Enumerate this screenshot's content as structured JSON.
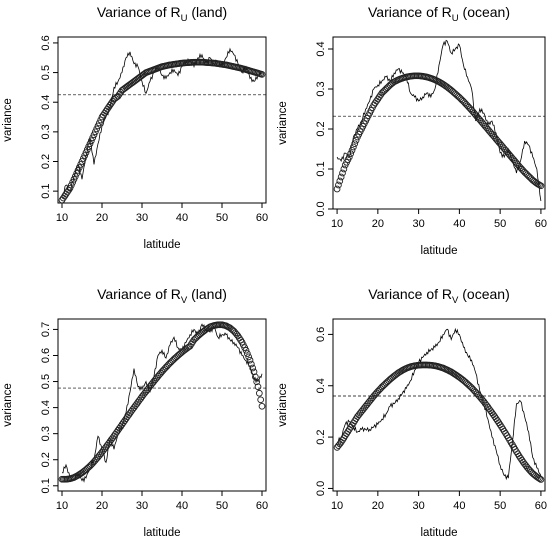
{
  "chart_data": [
    {
      "type": "line",
      "title": {
        "pre": "Variance of R",
        "sub": "U",
        "post": " (land)"
      },
      "xlabel": "latitude",
      "ylabel": "variance",
      "xlim": [
        9,
        61
      ],
      "ylim": [
        0.06,
        0.62
      ],
      "xticks": [
        "10",
        "20",
        "30",
        "40",
        "50",
        "60"
      ],
      "yticks": [
        "0.1",
        "0.2",
        "0.3",
        "0.4",
        "0.5",
        "0.6"
      ],
      "mean_line": 0.425,
      "series": [
        {
          "style": "observed",
          "x": [
            10,
            11,
            12,
            13,
            14,
            15,
            16,
            17,
            18,
            19,
            20,
            21,
            22,
            23,
            24,
            25,
            26,
            27,
            28,
            29,
            30,
            31,
            32,
            33,
            34,
            35,
            36,
            37,
            38,
            39,
            40,
            41,
            42,
            43,
            44,
            45,
            46,
            47,
            48,
            49,
            50,
            51,
            52,
            53,
            54,
            55,
            56,
            57,
            58,
            59,
            60
          ],
          "y": [
            0.08,
            0.12,
            0.1,
            0.15,
            0.19,
            0.14,
            0.22,
            0.28,
            0.19,
            0.26,
            0.32,
            0.35,
            0.38,
            0.45,
            0.47,
            0.5,
            0.55,
            0.57,
            0.53,
            0.52,
            0.47,
            0.43,
            0.47,
            0.5,
            0.52,
            0.49,
            0.48,
            0.5,
            0.51,
            0.49,
            0.52,
            0.54,
            0.54,
            0.52,
            0.55,
            0.56,
            0.53,
            0.55,
            0.53,
            0.54,
            0.52,
            0.55,
            0.58,
            0.56,
            0.53,
            0.5,
            0.52,
            0.48,
            0.47,
            0.49,
            0.5
          ]
        },
        {
          "style": "fitted",
          "x": [
            10,
            11,
            12,
            13,
            14,
            15,
            16,
            17,
            18,
            19,
            20,
            21,
            22,
            23,
            24,
            25,
            26,
            27,
            28,
            29,
            30,
            31,
            32,
            33,
            34,
            35,
            36,
            37,
            38,
            39,
            40,
            41,
            42,
            43,
            44,
            45,
            46,
            47,
            48,
            49,
            50,
            51,
            52,
            53,
            54,
            55,
            56,
            57,
            58,
            59,
            60
          ],
          "y": [
            0.07,
            0.09,
            0.11,
            0.14,
            0.17,
            0.2,
            0.23,
            0.26,
            0.29,
            0.32,
            0.35,
            0.37,
            0.39,
            0.41,
            0.42,
            0.44,
            0.45,
            0.46,
            0.47,
            0.48,
            0.49,
            0.5,
            0.505,
            0.51,
            0.515,
            0.52,
            0.523,
            0.526,
            0.528,
            0.53,
            0.532,
            0.533,
            0.534,
            0.535,
            0.535,
            0.535,
            0.534,
            0.533,
            0.532,
            0.53,
            0.528,
            0.526,
            0.523,
            0.52,
            0.517,
            0.514,
            0.51,
            0.506,
            0.502,
            0.498,
            0.494
          ]
        }
      ]
    },
    {
      "type": "line",
      "title": {
        "pre": "Variance of R",
        "sub": "U",
        "post": " (ocean)"
      },
      "xlabel": "latitude",
      "ylabel": "variance",
      "xlim": [
        9,
        61
      ],
      "ylim": [
        0,
        0.43
      ],
      "xticks": [
        "10",
        "20",
        "30",
        "40",
        "50",
        "60"
      ],
      "yticks": [
        "0.0",
        "0.1",
        "0.2",
        "0.3",
        "0.4"
      ],
      "mean_line": 0.232,
      "series": [
        {
          "style": "observed",
          "x": [
            10,
            11,
            12,
            13,
            14,
            15,
            16,
            17,
            18,
            19,
            20,
            21,
            22,
            23,
            24,
            25,
            26,
            27,
            28,
            29,
            30,
            31,
            32,
            33,
            34,
            35,
            36,
            37,
            38,
            39,
            40,
            41,
            42,
            43,
            44,
            45,
            46,
            47,
            48,
            49,
            50,
            51,
            52,
            53,
            54,
            55,
            56,
            57,
            58,
            59,
            60
          ],
          "y": [
            0.13,
            0.12,
            0.14,
            0.13,
            0.18,
            0.2,
            0.22,
            0.25,
            0.27,
            0.3,
            0.31,
            0.32,
            0.33,
            0.32,
            0.34,
            0.35,
            0.34,
            0.33,
            0.29,
            0.28,
            0.27,
            0.28,
            0.29,
            0.28,
            0.3,
            0.36,
            0.41,
            0.42,
            0.39,
            0.4,
            0.41,
            0.36,
            0.33,
            0.3,
            0.22,
            0.25,
            0.24,
            0.21,
            0.22,
            0.19,
            0.14,
            0.13,
            0.15,
            0.12,
            0.09,
            0.12,
            0.17,
            0.16,
            0.13,
            0.1,
            0.02
          ]
        },
        {
          "style": "fitted",
          "x": [
            10,
            11,
            12,
            13,
            14,
            15,
            16,
            17,
            18,
            19,
            20,
            21,
            22,
            23,
            24,
            25,
            26,
            27,
            28,
            29,
            30,
            31,
            32,
            33,
            34,
            35,
            36,
            37,
            38,
            39,
            40,
            41,
            42,
            43,
            44,
            45,
            46,
            47,
            48,
            49,
            50,
            51,
            52,
            53,
            54,
            55,
            56,
            57,
            58,
            59,
            60
          ],
          "y": [
            0.05,
            0.08,
            0.11,
            0.13,
            0.155,
            0.18,
            0.2,
            0.22,
            0.24,
            0.26,
            0.275,
            0.29,
            0.3,
            0.31,
            0.318,
            0.323,
            0.327,
            0.33,
            0.332,
            0.333,
            0.333,
            0.332,
            0.33,
            0.327,
            0.323,
            0.318,
            0.312,
            0.305,
            0.297,
            0.288,
            0.279,
            0.269,
            0.258,
            0.247,
            0.235,
            0.223,
            0.211,
            0.199,
            0.187,
            0.175,
            0.163,
            0.151,
            0.139,
            0.127,
            0.115,
            0.103,
            0.092,
            0.082,
            0.072,
            0.064,
            0.058
          ]
        }
      ]
    },
    {
      "type": "line",
      "title": {
        "pre": "Variance of R",
        "sub": "V",
        "post": " (land)"
      },
      "xlabel": "latitude",
      "ylabel": "variance",
      "xlim": [
        9,
        61
      ],
      "ylim": [
        0.08,
        0.74
      ],
      "xticks": [
        "10",
        "20",
        "30",
        "40",
        "50",
        "60"
      ],
      "yticks": [
        "0.1",
        "0.2",
        "0.3",
        "0.4",
        "0.5",
        "0.6",
        "0.7"
      ],
      "mean_line": 0.475,
      "series": [
        {
          "style": "observed",
          "x": [
            10,
            11,
            12,
            13,
            14,
            15,
            16,
            17,
            18,
            19,
            20,
            21,
            22,
            23,
            24,
            25,
            26,
            27,
            28,
            29,
            30,
            31,
            32,
            33,
            34,
            35,
            36,
            37,
            38,
            39,
            40,
            41,
            42,
            43,
            44,
            45,
            46,
            47,
            48,
            49,
            50,
            51,
            52,
            53,
            54,
            55,
            56,
            57,
            58,
            59,
            60
          ],
          "y": [
            0.15,
            0.18,
            0.13,
            0.12,
            0.15,
            0.12,
            0.13,
            0.17,
            0.2,
            0.29,
            0.24,
            0.19,
            0.28,
            0.24,
            0.3,
            0.33,
            0.38,
            0.46,
            0.55,
            0.48,
            0.47,
            0.5,
            0.46,
            0.52,
            0.6,
            0.62,
            0.59,
            0.64,
            0.67,
            0.63,
            0.62,
            0.65,
            0.68,
            0.7,
            0.68,
            0.72,
            0.7,
            0.69,
            0.71,
            0.67,
            0.68,
            0.68,
            0.66,
            0.65,
            0.63,
            0.6,
            0.58,
            0.56,
            0.51,
            0.5,
            0.53
          ]
        },
        {
          "style": "fitted",
          "x": [
            10,
            11,
            12,
            13,
            14,
            15,
            16,
            17,
            18,
            19,
            20,
            21,
            22,
            23,
            24,
            25,
            26,
            27,
            28,
            29,
            30,
            31,
            32,
            33,
            34,
            35,
            36,
            37,
            38,
            39,
            40,
            41,
            42,
            43,
            44,
            45,
            46,
            47,
            48,
            49,
            50,
            51,
            52,
            53,
            54,
            55,
            56,
            57,
            58,
            59,
            60
          ],
          "y": [
            0.125,
            0.125,
            0.127,
            0.132,
            0.14,
            0.15,
            0.162,
            0.176,
            0.192,
            0.21,
            0.229,
            0.249,
            0.27,
            0.291,
            0.313,
            0.335,
            0.357,
            0.379,
            0.4,
            0.421,
            0.442,
            0.462,
            0.482,
            0.501,
            0.52,
            0.538,
            0.555,
            0.571,
            0.586,
            0.6,
            0.613,
            0.625,
            0.636,
            0.66,
            0.675,
            0.688,
            0.7,
            0.71,
            0.715,
            0.718,
            0.718,
            0.714,
            0.706,
            0.693,
            0.675,
            0.651,
            0.62,
            0.582,
            0.537,
            0.48,
            0.405
          ]
        }
      ]
    },
    {
      "type": "line",
      "title": {
        "pre": "Variance of R",
        "sub": "V",
        "post": " (ocean)"
      },
      "xlabel": "latitude",
      "ylabel": "variance",
      "xlim": [
        9,
        61
      ],
      "ylim": [
        -0.01,
        0.66
      ],
      "xticks": [
        "10",
        "20",
        "30",
        "40",
        "50",
        "60"
      ],
      "yticks": [
        "0.0",
        "0.2",
        "0.4",
        "0.6"
      ],
      "mean_line": 0.36,
      "series": [
        {
          "style": "observed",
          "x": [
            10,
            11,
            12,
            13,
            14,
            15,
            16,
            17,
            18,
            19,
            20,
            21,
            22,
            23,
            24,
            25,
            26,
            27,
            28,
            29,
            30,
            31,
            32,
            33,
            34,
            35,
            36,
            37,
            38,
            39,
            40,
            41,
            42,
            43,
            44,
            45,
            46,
            47,
            48,
            49,
            50,
            51,
            52,
            53,
            54,
            55,
            56,
            57,
            58,
            59,
            60
          ],
          "y": [
            0.18,
            0.2,
            0.25,
            0.26,
            0.24,
            0.22,
            0.23,
            0.23,
            0.23,
            0.24,
            0.25,
            0.27,
            0.29,
            0.32,
            0.33,
            0.35,
            0.37,
            0.39,
            0.42,
            0.46,
            0.49,
            0.51,
            0.53,
            0.54,
            0.55,
            0.57,
            0.6,
            0.62,
            0.58,
            0.62,
            0.6,
            0.55,
            0.52,
            0.5,
            0.45,
            0.38,
            0.33,
            0.27,
            0.2,
            0.15,
            0.09,
            0.05,
            0.04,
            0.18,
            0.33,
            0.34,
            0.28,
            0.22,
            0.12,
            0.08,
            0.05
          ]
        },
        {
          "style": "fitted",
          "x": [
            10,
            11,
            12,
            13,
            14,
            15,
            16,
            17,
            18,
            19,
            20,
            21,
            22,
            23,
            24,
            25,
            26,
            27,
            28,
            29,
            30,
            31,
            32,
            33,
            34,
            35,
            36,
            37,
            38,
            39,
            40,
            41,
            42,
            43,
            44,
            45,
            46,
            47,
            48,
            49,
            50,
            51,
            52,
            53,
            54,
            55,
            56,
            57,
            58,
            59,
            60
          ],
          "y": [
            0.16,
            0.18,
            0.205,
            0.23,
            0.255,
            0.28,
            0.3,
            0.32,
            0.34,
            0.36,
            0.378,
            0.395,
            0.41,
            0.425,
            0.438,
            0.45,
            0.46,
            0.468,
            0.474,
            0.478,
            0.48,
            0.481,
            0.481,
            0.48,
            0.478,
            0.474,
            0.469,
            0.462,
            0.454,
            0.444,
            0.433,
            0.421,
            0.407,
            0.392,
            0.375,
            0.357,
            0.338,
            0.317,
            0.295,
            0.272,
            0.248,
            0.223,
            0.197,
            0.17,
            0.143,
            0.118,
            0.095,
            0.075,
            0.058,
            0.045,
            0.035
          ]
        }
      ]
    }
  ]
}
